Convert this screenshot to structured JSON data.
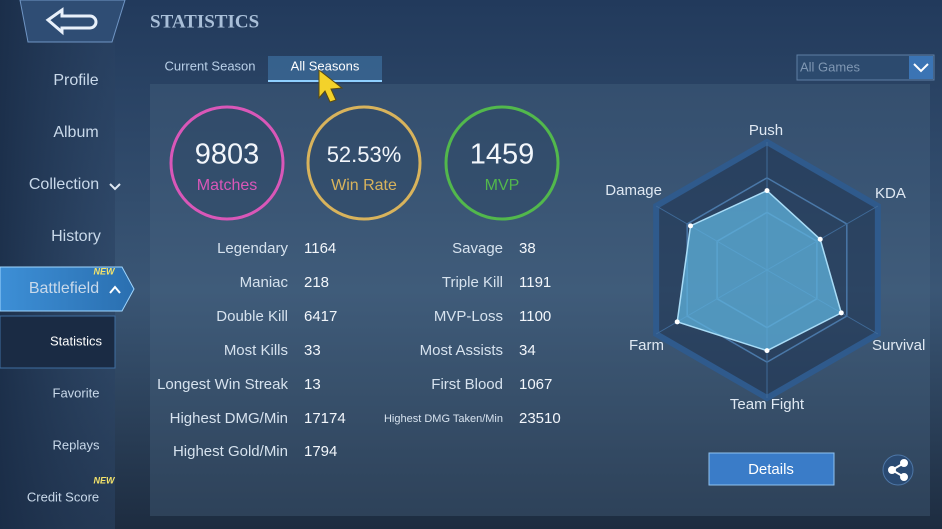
{
  "sidebar": {
    "items": [
      "Profile",
      "Album",
      "Collection",
      "History",
      "Battlefield",
      "Statistics",
      "Favorite",
      "Replays",
      "Credit Score"
    ],
    "badges": [
      "NEW",
      "NEW"
    ]
  },
  "header": {
    "title": "STATISTICS"
  },
  "tabs": [
    "Current Season",
    "All Seasons"
  ],
  "filter": "All Games",
  "summary": [
    {
      "value": "9803",
      "label": "Matches",
      "color": "#d957b8"
    },
    {
      "value": "52.53%",
      "label": "Win Rate",
      "color": "#d8b35c"
    },
    {
      "value": "1459",
      "label": "MVP",
      "color": "#52b84c"
    }
  ],
  "stats": {
    "left": [
      {
        "label": "Legendary",
        "value": 1164
      },
      {
        "label": "Maniac",
        "value": 218
      },
      {
        "label": "Double Kill",
        "value": 6417
      },
      {
        "label": "Most Kills",
        "value": 33
      },
      {
        "label": "Longest Win Streak",
        "value": 13
      },
      {
        "label": "Highest DMG/Min",
        "value": 17174
      },
      {
        "label": "Highest Gold/Min",
        "value": 1794
      }
    ],
    "right": [
      {
        "label": "Savage",
        "value": 38
      },
      {
        "label": "Triple Kill",
        "value": 1191
      },
      {
        "label": "MVP-Loss",
        "value": 1100
      },
      {
        "label": "Most Assists",
        "value": 34
      },
      {
        "label": "First Blood",
        "value": 1067
      },
      {
        "label": "Highest DMG Taken/Min",
        "value": 23510
      }
    ]
  },
  "radar": {
    "axes": [
      "Push",
      "KDA",
      "Survival",
      "Team Fight",
      "Farm",
      "Damage"
    ],
    "values": [
      62,
      48,
      67,
      63,
      81,
      69
    ],
    "rlim": [
      0,
      100
    ],
    "color": "#5fb2dc"
  },
  "button": "Details"
}
